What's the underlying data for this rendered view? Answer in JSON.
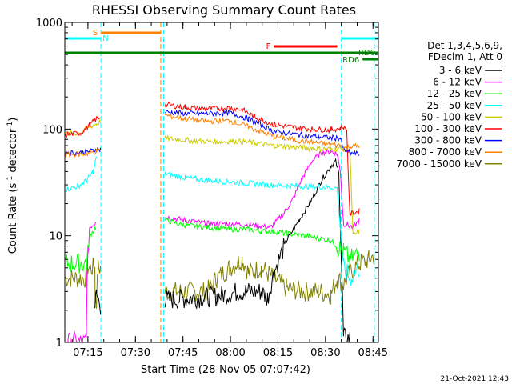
{
  "chart_data": {
    "type": "line",
    "title": "RHESSI Observing Summary Count Rates",
    "ylabel": "Count Rate (s",
    "ylabel_sup": "-1",
    "ylabel_tail": " detector",
    "ylabel_sup2": "-1",
    "ylabel_close": ")",
    "xlabel": "Start Time (28-Nov-05 07:07:42)",
    "y_scale": "log",
    "ylim": [
      1,
      1000
    ],
    "y_ticks": [
      {
        "value": 1,
        "label": "1"
      },
      {
        "value": 10,
        "label": "10"
      },
      {
        "value": 100,
        "label": "100"
      },
      {
        "value": 1000,
        "label": "1000"
      }
    ],
    "x_range_minutes": [
      0,
      99
    ],
    "x_ticks": [
      {
        "minute": 7.3,
        "label": "07:15"
      },
      {
        "minute": 22.3,
        "label": "07:30"
      },
      {
        "minute": 37.3,
        "label": "07:45"
      },
      {
        "minute": 52.3,
        "label": "08:00"
      },
      {
        "minute": 67.3,
        "label": "08:15"
      },
      {
        "minute": 82.3,
        "label": "08:30"
      },
      {
        "minute": 97.3,
        "label": "08:45"
      }
    ],
    "legend": {
      "header": [
        "Det 1,3,4,5,6,9,",
        "FDecim 1, Att 0"
      ],
      "entries": [
        {
          "label": "3 - 6 keV",
          "color": "#000000"
        },
        {
          "label": "6 - 12 keV",
          "color": "#ff00ff"
        },
        {
          "label": "12 - 25 keV",
          "color": "#00ff00"
        },
        {
          "label": "25 - 50 keV",
          "color": "#00ffff"
        },
        {
          "label": "50 - 100 keV",
          "color": "#cccc00"
        },
        {
          "label": "100 - 300 keV",
          "color": "#ff0000"
        },
        {
          "label": "300 - 800 keV",
          "color": "#0000ff"
        },
        {
          "label": "800 - 7000 keV",
          "color": "#ff8000"
        },
        {
          "label": "7000 - 15000 keV",
          "color": "#808000"
        }
      ]
    },
    "flags": [
      {
        "label": "S",
        "color": "#ff8000",
        "x0": 11.4,
        "x1": 30.3,
        "level": "top"
      },
      {
        "label": "N",
        "color": "#00ffff",
        "x0": 0,
        "x1": 11.4,
        "level": "top2"
      },
      {
        "label": "N",
        "color": "#00ffff",
        "x0": 87.3,
        "x1": 99,
        "level": "top2",
        "hide_label": true
      },
      {
        "label": "F",
        "color": "#ff0000",
        "x0": 66,
        "x1": 86,
        "level": "mid"
      },
      {
        "label": "RD0",
        "color": "#008000",
        "x0": 0,
        "x1": 99,
        "level": "rd0"
      },
      {
        "label": "RD6",
        "color": "#008000",
        "x0": 94,
        "x1": 99,
        "level": "rd6"
      }
    ],
    "data_gaps": [
      {
        "x0": 11.4,
        "x1": 31.5
      }
    ],
    "vlines": [
      {
        "x": 11.4,
        "color": "#00ffff"
      },
      {
        "x": 30.3,
        "color": "#ff8000"
      },
      {
        "x": 31.2,
        "color": "#00ffff"
      },
      {
        "x": 87.3,
        "color": "#00ffff"
      },
      {
        "x": 97.7,
        "color": "#00ffff"
      }
    ],
    "series": [
      {
        "color": "#808000",
        "points": [
          [
            0,
            4
          ],
          [
            7,
            4
          ],
          [
            7.2,
            5
          ],
          [
            9.5,
            5
          ],
          [
            9.6,
            2.5
          ],
          [
            10,
            2.5
          ],
          [
            10.5,
            5
          ],
          [
            11.3,
            5
          ]
        ],
        "seg2": [
          [
            31.6,
            3
          ],
          [
            45,
            3
          ],
          [
            48,
            4
          ],
          [
            52,
            5
          ],
          [
            56,
            6
          ],
          [
            58,
            4.5
          ],
          [
            62,
            5
          ],
          [
            66,
            4
          ],
          [
            70,
            3.2
          ],
          [
            75,
            3
          ],
          [
            80,
            3
          ],
          [
            84,
            2.8
          ],
          [
            86,
            4
          ],
          [
            88,
            3.5
          ],
          [
            90,
            4.5
          ],
          [
            93,
            5.5
          ],
          [
            96,
            6
          ],
          [
            97.5,
            6.5
          ]
        ]
      },
      {
        "color": "#000000",
        "points": [
          [
            9.5,
            2.2
          ],
          [
            10,
            2.8
          ],
          [
            11.3,
            2.2
          ]
        ],
        "seg2": [
          [
            31.6,
            2.5
          ],
          [
            48,
            2.7
          ],
          [
            55,
            3
          ],
          [
            62,
            3
          ],
          [
            64,
            2.6
          ],
          [
            66,
            4.5
          ],
          [
            70,
            9
          ],
          [
            74,
            14
          ],
          [
            78,
            22
          ],
          [
            81,
            33
          ],
          [
            84,
            45
          ],
          [
            85.5,
            50
          ],
          [
            86.5,
            38
          ],
          [
            87.3,
            6
          ],
          [
            88,
            1.1
          ],
          [
            90,
            1.1
          ]
        ]
      },
      {
        "color": "#ff00ff",
        "points": [
          [
            0,
            1
          ],
          [
            6.8,
            1
          ],
          [
            7,
            3.6
          ],
          [
            7.8,
            12
          ],
          [
            9.3,
            13
          ],
          [
            9.8,
            14
          ]
        ],
        "seg2": [
          [
            31.6,
            15
          ],
          [
            38,
            14
          ],
          [
            45,
            13
          ],
          [
            52,
            13
          ],
          [
            60,
            12.5
          ],
          [
            65,
            12
          ],
          [
            69,
            16
          ],
          [
            72,
            22
          ],
          [
            75,
            35
          ],
          [
            78,
            50
          ],
          [
            81,
            60
          ],
          [
            84,
            62
          ],
          [
            86,
            58
          ],
          [
            87,
            40
          ],
          [
            88,
            13
          ],
          [
            91,
            12
          ],
          [
            93,
            14
          ]
        ]
      },
      {
        "color": "#00ff00",
        "points": [
          [
            0,
            5.5
          ],
          [
            7,
            5.5
          ],
          [
            7.8,
            10
          ],
          [
            9.8,
            12
          ]
        ],
        "seg2": [
          [
            31.6,
            14
          ],
          [
            38,
            12.5
          ],
          [
            45,
            12
          ],
          [
            52,
            11.5
          ],
          [
            58,
            11.5
          ],
          [
            62,
            11
          ],
          [
            66,
            11
          ],
          [
            70,
            10.5
          ],
          [
            76,
            10
          ],
          [
            80,
            9.5
          ],
          [
            84,
            9
          ],
          [
            86,
            8
          ],
          [
            88,
            7
          ],
          [
            90,
            6
          ],
          [
            93,
            7
          ]
        ]
      },
      {
        "color": "#00ffff",
        "points": [
          [
            0,
            27
          ],
          [
            4,
            29
          ],
          [
            7,
            33
          ],
          [
            9,
            40
          ],
          [
            10,
            55
          ]
        ],
        "seg2": [
          [
            31.6,
            38
          ],
          [
            38,
            35
          ],
          [
            45,
            33
          ],
          [
            52,
            32
          ],
          [
            58,
            31
          ],
          [
            64,
            30
          ],
          [
            70,
            29.5
          ],
          [
            76,
            29
          ],
          [
            82,
            28.5
          ],
          [
            86,
            28
          ],
          [
            88,
            5
          ],
          [
            90,
            4
          ],
          [
            93,
            5
          ]
        ]
      },
      {
        "color": "#cccc00",
        "points": [
          [
            0,
            90
          ],
          [
            5,
            92
          ],
          [
            8,
            105
          ],
          [
            10,
            112
          ],
          [
            11.3,
            118
          ]
        ],
        "seg2": [
          [
            31.6,
            82
          ],
          [
            40,
            78
          ],
          [
            48,
            76
          ],
          [
            54,
            77
          ],
          [
            60,
            74
          ],
          [
            66,
            70
          ],
          [
            72,
            68
          ],
          [
            78,
            66
          ],
          [
            84,
            65
          ],
          [
            87,
            66
          ],
          [
            89,
            64
          ],
          [
            90,
            62
          ],
          [
            91,
            10
          ],
          [
            93,
            11
          ]
        ]
      },
      {
        "color": "#ff0000",
        "points": [
          [
            0,
            88
          ],
          [
            5,
            92
          ],
          [
            8,
            110
          ],
          [
            10,
            125
          ],
          [
            11.3,
            130
          ]
        ],
        "seg2": [
          [
            31.6,
            170
          ],
          [
            38,
            160
          ],
          [
            45,
            155
          ],
          [
            52,
            158
          ],
          [
            56,
            152
          ],
          [
            60,
            130
          ],
          [
            66,
            110
          ],
          [
            72,
            104
          ],
          [
            78,
            100
          ],
          [
            84,
            98
          ],
          [
            87,
            102
          ],
          [
            88,
            104
          ],
          [
            89,
            96
          ],
          [
            90,
            16
          ],
          [
            93,
            17
          ]
        ]
      },
      {
        "color": "#0000ff",
        "points": [
          [
            0,
            60
          ],
          [
            6,
            60
          ],
          [
            8,
            62
          ],
          [
            10,
            64
          ],
          [
            11.3,
            65
          ]
        ],
        "seg2": [
          [
            31.6,
            145
          ],
          [
            38,
            140
          ],
          [
            45,
            140
          ],
          [
            52,
            142
          ],
          [
            58,
            125
          ],
          [
            66,
            95
          ],
          [
            74,
            88
          ],
          [
            80,
            85
          ],
          [
            84,
            83
          ],
          [
            87,
            82
          ],
          [
            88,
            64
          ],
          [
            90,
            60
          ],
          [
            93,
            58
          ]
        ]
      },
      {
        "color": "#ff8000",
        "points": [
          [
            0,
            58
          ],
          [
            6,
            58
          ],
          [
            8,
            60
          ],
          [
            10,
            62
          ],
          [
            11.3,
            63
          ]
        ],
        "seg2": [
          [
            31.6,
            135
          ],
          [
            38,
            125
          ],
          [
            45,
            118
          ],
          [
            52,
            120
          ],
          [
            58,
            105
          ],
          [
            66,
            85
          ],
          [
            74,
            78
          ],
          [
            80,
            74
          ],
          [
            84,
            72
          ],
          [
            87,
            70
          ],
          [
            88,
            66
          ],
          [
            90,
            68
          ],
          [
            93,
            70
          ]
        ]
      }
    ]
  },
  "footer": {
    "date_stamp": "21-Oct-2021 12:43"
  }
}
